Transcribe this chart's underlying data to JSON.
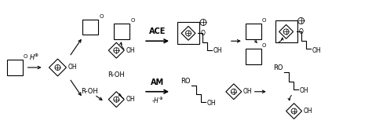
{
  "figsize": [
    4.74,
    1.72
  ],
  "dpi": 100,
  "bg_color": "#ffffff",
  "line_color": "#000000",
  "text_color": "#000000",
  "ace_label": "ACE",
  "am_label": "AM",
  "minus_hplus": "-H⊕"
}
